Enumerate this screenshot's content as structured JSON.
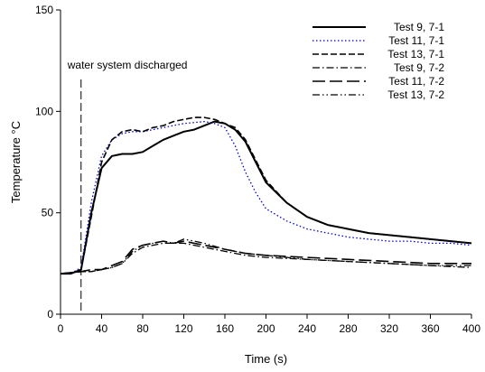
{
  "chart_data": {
    "type": "line",
    "xlabel": "Time (s)",
    "ylabel_text": "Temperature ",
    "ylabel_unit": "°C",
    "xlim": [
      0,
      400
    ],
    "ylim": [
      0,
      150
    ],
    "xticks": [
      0,
      40,
      80,
      120,
      160,
      200,
      240,
      280,
      320,
      360,
      400
    ],
    "yticks": [
      0,
      50,
      100,
      150
    ],
    "grid": false,
    "legend_position": "top-right",
    "annotation": {
      "text": "water system discharged",
      "x": 20
    },
    "series": [
      {
        "name": "Test 9, 7-1",
        "style": "solid",
        "color": "#000000",
        "points": [
          [
            0,
            20
          ],
          [
            10,
            20
          ],
          [
            20,
            22
          ],
          [
            30,
            50
          ],
          [
            40,
            72
          ],
          [
            50,
            78
          ],
          [
            60,
            79
          ],
          [
            70,
            79
          ],
          [
            80,
            80
          ],
          [
            90,
            83
          ],
          [
            100,
            86
          ],
          [
            110,
            88
          ],
          [
            120,
            90
          ],
          [
            130,
            91
          ],
          [
            140,
            93
          ],
          [
            150,
            95
          ],
          [
            160,
            94
          ],
          [
            170,
            91
          ],
          [
            180,
            85
          ],
          [
            190,
            75
          ],
          [
            200,
            65
          ],
          [
            220,
            55
          ],
          [
            240,
            48
          ],
          [
            260,
            44
          ],
          [
            280,
            42
          ],
          [
            300,
            40
          ],
          [
            320,
            39
          ],
          [
            340,
            38
          ],
          [
            360,
            37
          ],
          [
            380,
            36
          ],
          [
            400,
            35
          ]
        ]
      },
      {
        "name": "Test 11, 7-1",
        "style": "dotted",
        "color": "#0000cc",
        "points": [
          [
            0,
            20
          ],
          [
            10,
            20
          ],
          [
            20,
            23
          ],
          [
            30,
            55
          ],
          [
            40,
            78
          ],
          [
            50,
            86
          ],
          [
            60,
            89
          ],
          [
            70,
            90
          ],
          [
            80,
            90
          ],
          [
            90,
            91
          ],
          [
            100,
            92
          ],
          [
            120,
            94
          ],
          [
            140,
            95
          ],
          [
            150,
            94
          ],
          [
            160,
            92
          ],
          [
            170,
            83
          ],
          [
            180,
            70
          ],
          [
            190,
            60
          ],
          [
            200,
            52
          ],
          [
            220,
            46
          ],
          [
            240,
            42
          ],
          [
            260,
            40
          ],
          [
            280,
            38
          ],
          [
            300,
            37
          ],
          [
            320,
            36
          ],
          [
            340,
            36
          ],
          [
            360,
            35
          ],
          [
            380,
            35
          ],
          [
            400,
            34
          ]
        ]
      },
      {
        "name": "Test 13, 7-1",
        "style": "dashed",
        "color": "#000000",
        "points": [
          [
            0,
            20
          ],
          [
            10,
            20
          ],
          [
            20,
            22
          ],
          [
            30,
            48
          ],
          [
            40,
            75
          ],
          [
            50,
            86
          ],
          [
            60,
            90
          ],
          [
            70,
            91
          ],
          [
            80,
            90
          ],
          [
            90,
            92
          ],
          [
            100,
            93
          ],
          [
            110,
            95
          ],
          [
            120,
            96
          ],
          [
            130,
            97
          ],
          [
            140,
            97
          ],
          [
            150,
            96
          ],
          [
            160,
            94
          ],
          [
            170,
            92
          ],
          [
            180,
            86
          ],
          [
            190,
            76
          ],
          [
            200,
            66
          ],
          [
            220,
            55
          ],
          [
            240,
            48
          ],
          [
            260,
            44
          ],
          [
            280,
            42
          ],
          [
            300,
            40
          ],
          [
            320,
            39
          ],
          [
            340,
            38
          ],
          [
            360,
            37
          ],
          [
            380,
            36
          ],
          [
            400,
            35
          ]
        ]
      },
      {
        "name": "Test 9, 7-2",
        "style": "dashdot",
        "color": "#000000",
        "points": [
          [
            0,
            20
          ],
          [
            20,
            21
          ],
          [
            30,
            21
          ],
          [
            40,
            22
          ],
          [
            50,
            23
          ],
          [
            60,
            25
          ],
          [
            70,
            30
          ],
          [
            80,
            33
          ],
          [
            90,
            34
          ],
          [
            100,
            35
          ],
          [
            110,
            35
          ],
          [
            120,
            35
          ],
          [
            130,
            34
          ],
          [
            140,
            33
          ],
          [
            160,
            31
          ],
          [
            180,
            29
          ],
          [
            200,
            28
          ],
          [
            240,
            27
          ],
          [
            280,
            26
          ],
          [
            320,
            25
          ],
          [
            360,
            24
          ],
          [
            400,
            23
          ]
        ]
      },
      {
        "name": "Test 11, 7-2",
        "style": "longdash",
        "color": "#000000",
        "points": [
          [
            0,
            20
          ],
          [
            20,
            21
          ],
          [
            30,
            22
          ],
          [
            40,
            22
          ],
          [
            50,
            24
          ],
          [
            60,
            26
          ],
          [
            70,
            32
          ],
          [
            80,
            34
          ],
          [
            90,
            35
          ],
          [
            100,
            36
          ],
          [
            110,
            35
          ],
          [
            120,
            36
          ],
          [
            130,
            35
          ],
          [
            140,
            34
          ],
          [
            160,
            32
          ],
          [
            180,
            30
          ],
          [
            200,
            29
          ],
          [
            240,
            28
          ],
          [
            280,
            27
          ],
          [
            320,
            26
          ],
          [
            360,
            25
          ],
          [
            400,
            25
          ]
        ]
      },
      {
        "name": "Test 13, 7-2",
        "style": "dashdotdot",
        "color": "#000000",
        "points": [
          [
            0,
            20
          ],
          [
            20,
            21
          ],
          [
            30,
            21
          ],
          [
            40,
            22
          ],
          [
            50,
            23
          ],
          [
            60,
            25
          ],
          [
            70,
            31
          ],
          [
            80,
            34
          ],
          [
            90,
            35
          ],
          [
            100,
            36
          ],
          [
            110,
            35
          ],
          [
            120,
            37
          ],
          [
            130,
            36
          ],
          [
            140,
            35
          ],
          [
            160,
            32
          ],
          [
            180,
            30
          ],
          [
            200,
            29
          ],
          [
            240,
            27
          ],
          [
            280,
            26
          ],
          [
            320,
            25
          ],
          [
            360,
            24
          ],
          [
            400,
            24
          ]
        ]
      }
    ]
  }
}
